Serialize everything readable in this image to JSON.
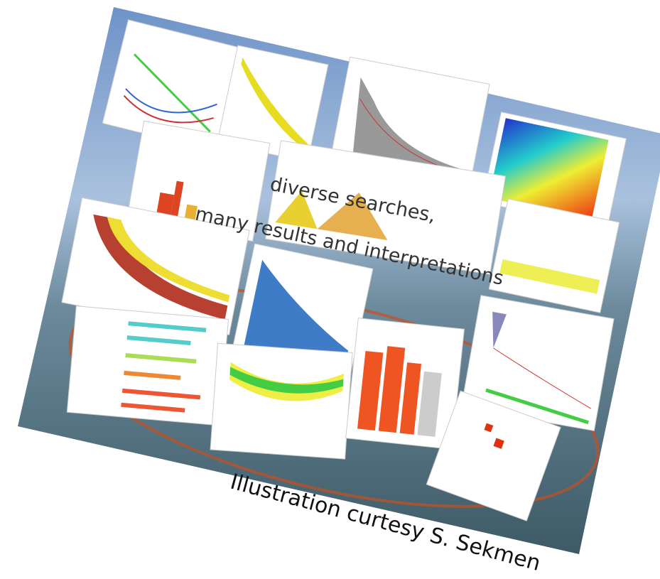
{
  "overlay": {
    "lines": [
      "diverse searches,",
      "many results and interpretations"
    ]
  },
  "caption": "Illustration curtesy S. Sekmen"
}
